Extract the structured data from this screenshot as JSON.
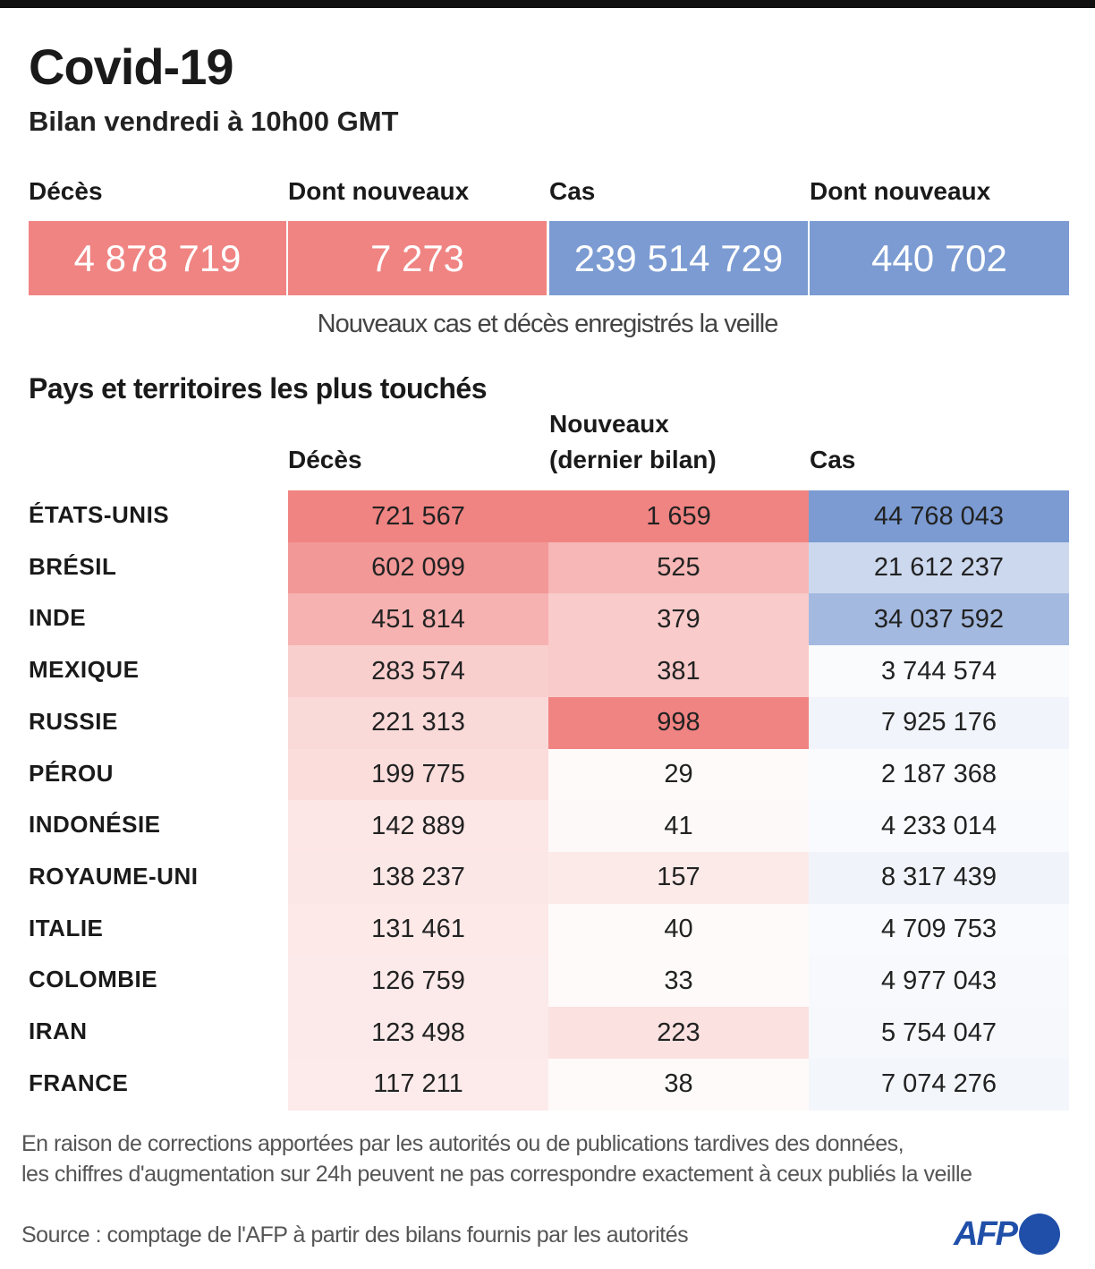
{
  "title": "Covid-19",
  "subtitle": "Bilan vendredi à 10h00 GMT",
  "summary": {
    "labels": [
      "Décès",
      "Dont nouveaux",
      "Cas",
      "Dont nouveaux"
    ],
    "values": [
      "4 878 719",
      "7 273",
      "239 514 729",
      "440 702"
    ],
    "note": "Nouveaux cas et décès enregistrés la veille"
  },
  "colors": {
    "red": "#f08482",
    "blue": "#7b9bd2",
    "logo": "#1f4fa8"
  },
  "chart_data": {
    "type": "table",
    "title": "Pays et territoires les plus touchés",
    "columns": [
      "Décès",
      "Nouveaux\n(dernier bilan)",
      "Cas"
    ],
    "column_labels": {
      "deces": "Décès",
      "nouveaux_1": "Nouveaux",
      "nouveaux_2": "(dernier bilan)",
      "cas": "Cas"
    },
    "rows": [
      {
        "country": "ÉTATS-UNIS",
        "deces": "721 567",
        "nouveaux": "1 659",
        "cas": "44 768 043"
      },
      {
        "country": "BRÉSIL",
        "deces": "602 099",
        "nouveaux": "525",
        "cas": "21 612 237"
      },
      {
        "country": "INDE",
        "deces": "451 814",
        "nouveaux": "379",
        "cas": "34 037 592"
      },
      {
        "country": "MEXIQUE",
        "deces": "283 574",
        "nouveaux": "381",
        "cas": "3 744 574"
      },
      {
        "country": "RUSSIE",
        "deces": "221 313",
        "nouveaux": "998",
        "cas": "7 925 176"
      },
      {
        "country": "PÉROU",
        "deces": "199 775",
        "nouveaux": "29",
        "cas": "2 187 368"
      },
      {
        "country": "INDONÉSIE",
        "deces": "142 889",
        "nouveaux": "41",
        "cas": "4 233 014"
      },
      {
        "country": "ROYAUME-UNI",
        "deces": "138 237",
        "nouveaux": "157",
        "cas": "8 317 439"
      },
      {
        "country": "ITALIE",
        "deces": "131 461",
        "nouveaux": "40",
        "cas": "4 709 753"
      },
      {
        "country": "COLOMBIE",
        "deces": "126 759",
        "nouveaux": "33",
        "cas": "4 977 043"
      },
      {
        "country": "IRAN",
        "deces": "123 498",
        "nouveaux": "223",
        "cas": "5 754 047"
      },
      {
        "country": "FRANCE",
        "deces": "117 211",
        "nouveaux": "38",
        "cas": "7 074 276"
      }
    ]
  },
  "footer": {
    "note_line1": "En raison de corrections apportées par les autorités ou de publications tardives des données,",
    "note_line2": "les chiffres d'augmentation sur 24h peuvent ne pas correspondre exactement à ceux publiés la veille",
    "source": "Source : comptage de l'AFP à partir des bilans fournis par les autorités",
    "logo_text": "AFP"
  }
}
